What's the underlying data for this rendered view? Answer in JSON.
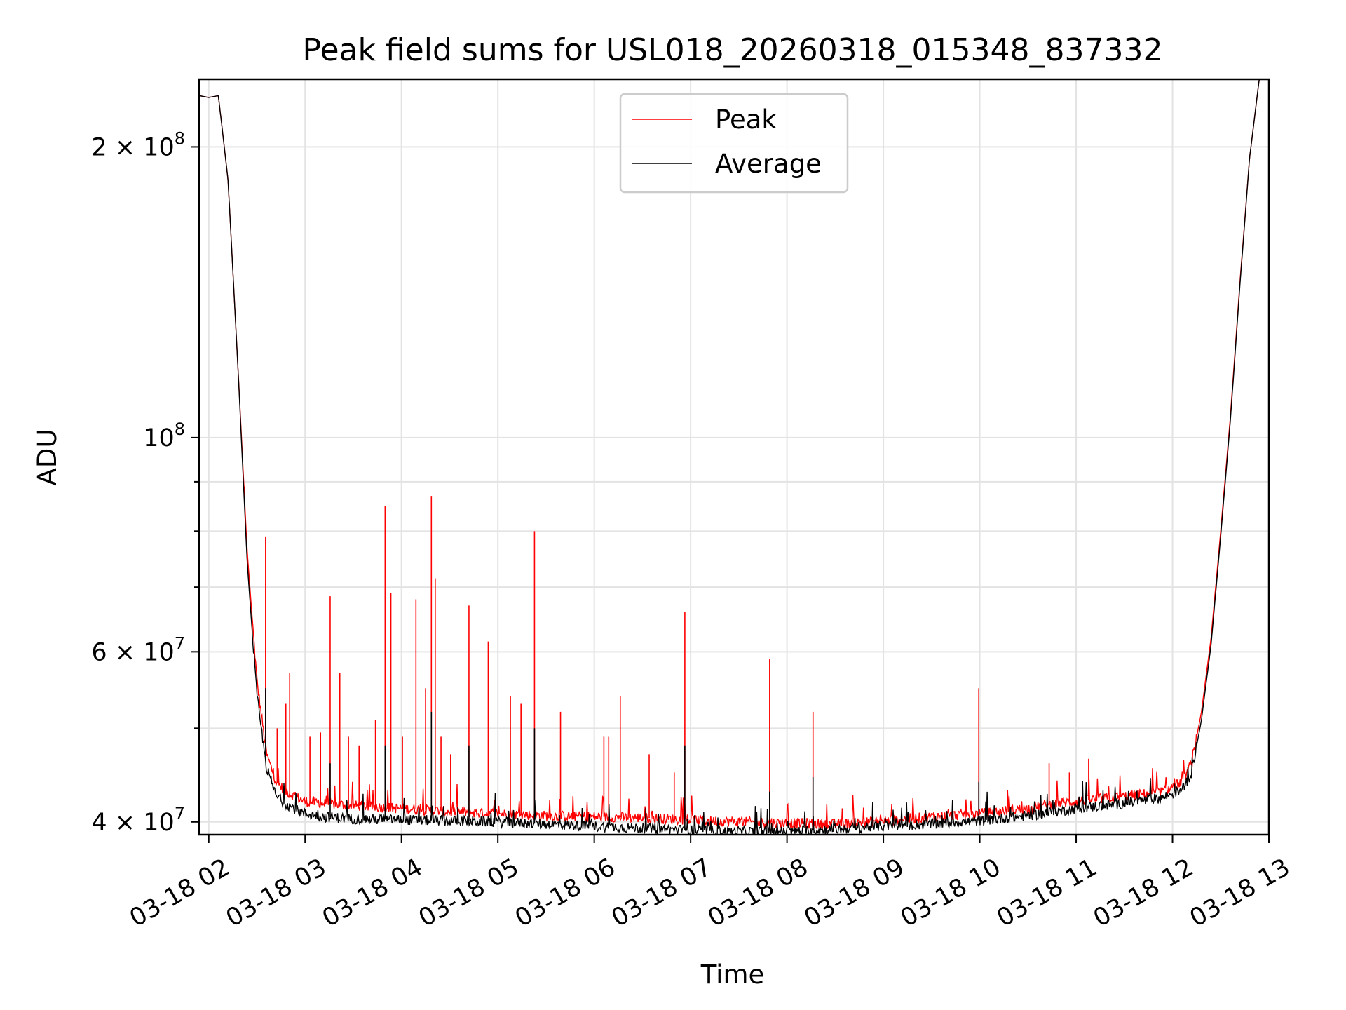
{
  "chart_data": {
    "type": "line",
    "title": "Peak field sums for USL018_20260318_015348_837332",
    "xlabel": "Time",
    "ylabel": "ADU",
    "yscale": "log",
    "ylim": [
      38800000,
      235000000
    ],
    "xlim_hours": [
      1.9,
      13.0
    ],
    "grid": true,
    "legend_position": "upper center",
    "x_ticks": [
      {
        "label": "03-18 02",
        "hour": 2
      },
      {
        "label": "03-18 03",
        "hour": 3
      },
      {
        "label": "03-18 04",
        "hour": 4
      },
      {
        "label": "03-18 05",
        "hour": 5
      },
      {
        "label": "03-18 06",
        "hour": 6
      },
      {
        "label": "03-18 07",
        "hour": 7
      },
      {
        "label": "03-18 08",
        "hour": 8
      },
      {
        "label": "03-18 09",
        "hour": 9
      },
      {
        "label": "03-18 10",
        "hour": 10
      },
      {
        "label": "03-18 11",
        "hour": 11
      },
      {
        "label": "03-18 12",
        "hour": 12
      },
      {
        "label": "03-18 13",
        "hour": 13
      }
    ],
    "y_ticks": [
      {
        "value": 40000000,
        "mantissa": "4 × 10",
        "exponent": "7"
      },
      {
        "value": 60000000,
        "mantissa": "6 × 10",
        "exponent": "7"
      },
      {
        "value": 100000000,
        "mantissa": "10",
        "exponent": "8"
      },
      {
        "value": 200000000,
        "mantissa": "2 × 10",
        "exponent": "8"
      }
    ],
    "y_minor_ticks": [
      50000000,
      70000000,
      80000000,
      90000000
    ],
    "series": [
      {
        "name": "Peak",
        "color": "#ff0000",
        "baseline": {
          "x": [
            1.9,
            2.0,
            2.1,
            2.2,
            2.3,
            2.4,
            2.5,
            2.6,
            2.7,
            2.8,
            2.9,
            3.0,
            3.2,
            3.5,
            4.0,
            4.5,
            5.0,
            5.5,
            6.0,
            6.5,
            7.0,
            7.5,
            8.0,
            8.5,
            9.0,
            9.5,
            10.0,
            10.5,
            10.8,
            11.0,
            11.5,
            11.9,
            12.1,
            12.2,
            12.3,
            12.4,
            12.5,
            12.6,
            12.7,
            12.8,
            12.9
          ],
          "y": [
            226000000,
            225000000,
            226000000,
            185000000,
            120000000,
            76000000,
            56000000,
            47000000,
            44000000,
            43000000,
            42500000,
            42000000,
            41800000,
            41600000,
            41300000,
            41000000,
            40800000,
            40600000,
            40500000,
            40400000,
            40200000,
            40000000,
            39900000,
            39800000,
            40100000,
            40500000,
            40800000,
            41300000,
            41800000,
            42000000,
            42500000,
            43000000,
            44000000,
            46000000,
            52000000,
            62000000,
            80000000,
            105000000,
            145000000,
            195000000,
            235000000
          ]
        },
        "spikes": [
          {
            "hour": 2.37,
            "value": 89000000
          },
          {
            "hour": 2.41,
            "value": 73000000
          },
          {
            "hour": 2.59,
            "value": 79000000
          },
          {
            "hour": 2.71,
            "value": 50000000
          },
          {
            "hour": 2.8,
            "value": 53000000
          },
          {
            "hour": 2.84,
            "value": 57000000
          },
          {
            "hour": 3.05,
            "value": 49000000
          },
          {
            "hour": 3.16,
            "value": 49500000
          },
          {
            "hour": 3.26,
            "value": 68500000
          },
          {
            "hour": 3.36,
            "value": 57000000
          },
          {
            "hour": 3.45,
            "value": 49000000
          },
          {
            "hour": 3.56,
            "value": 48000000
          },
          {
            "hour": 3.73,
            "value": 51000000
          },
          {
            "hour": 3.83,
            "value": 85000000
          },
          {
            "hour": 3.89,
            "value": 69000000
          },
          {
            "hour": 4.01,
            "value": 49000000
          },
          {
            "hour": 4.15,
            "value": 68000000
          },
          {
            "hour": 4.25,
            "value": 55000000
          },
          {
            "hour": 4.31,
            "value": 87000000
          },
          {
            "hour": 4.35,
            "value": 71500000
          },
          {
            "hour": 4.41,
            "value": 49000000
          },
          {
            "hour": 4.51,
            "value": 47000000
          },
          {
            "hour": 4.7,
            "value": 67000000
          },
          {
            "hour": 4.9,
            "value": 61500000
          },
          {
            "hour": 5.13,
            "value": 54000000
          },
          {
            "hour": 5.24,
            "value": 53000000
          },
          {
            "hour": 5.38,
            "value": 80000000
          },
          {
            "hour": 5.65,
            "value": 52000000
          },
          {
            "hour": 6.1,
            "value": 49000000
          },
          {
            "hour": 6.15,
            "value": 49000000
          },
          {
            "hour": 6.27,
            "value": 54000000
          },
          {
            "hour": 6.57,
            "value": 47000000
          },
          {
            "hour": 6.83,
            "value": 45000000
          },
          {
            "hour": 6.94,
            "value": 66000000
          },
          {
            "hour": 7.82,
            "value": 59000000
          },
          {
            "hour": 8.27,
            "value": 52000000
          },
          {
            "hour": 9.99,
            "value": 55000000
          },
          {
            "hour": 10.72,
            "value": 46000000
          },
          {
            "hour": 10.93,
            "value": 45000000
          },
          {
            "hour": 11.13,
            "value": 46500000
          }
        ]
      },
      {
        "name": "Average",
        "color": "#000000",
        "baseline": {
          "x": [
            1.9,
            2.0,
            2.1,
            2.2,
            2.3,
            2.4,
            2.5,
            2.6,
            2.7,
            2.8,
            2.9,
            3.0,
            3.2,
            3.5,
            4.0,
            4.5,
            5.0,
            5.5,
            6.0,
            6.5,
            7.0,
            7.5,
            8.0,
            8.5,
            9.0,
            9.5,
            10.0,
            10.5,
            10.8,
            11.0,
            11.5,
            11.9,
            12.1,
            12.2,
            12.3,
            12.4,
            12.5,
            12.6,
            12.7,
            12.8,
            12.9
          ],
          "y": [
            226000000,
            225000000,
            226000000,
            185000000,
            120000000,
            74000000,
            54000000,
            45500000,
            42500000,
            41800000,
            41200000,
            40800000,
            40500000,
            40300000,
            40200000,
            40100000,
            40000000,
            39800000,
            39600000,
            39400000,
            39200000,
            39100000,
            39100000,
            39300000,
            39600000,
            39800000,
            40100000,
            40600000,
            41000000,
            41300000,
            41800000,
            42400000,
            43200000,
            45000000,
            51000000,
            61000000,
            79000000,
            104000000,
            144000000,
            195000000,
            235000000
          ]
        },
        "spikes": [
          {
            "hour": 2.59,
            "value": 55000000
          },
          {
            "hour": 3.26,
            "value": 46000000
          },
          {
            "hour": 3.83,
            "value": 48000000
          },
          {
            "hour": 4.31,
            "value": 52000000
          },
          {
            "hour": 4.7,
            "value": 48000000
          },
          {
            "hour": 5.38,
            "value": 50000000
          },
          {
            "hour": 6.94,
            "value": 48000000
          },
          {
            "hour": 7.82,
            "value": 43000000
          },
          {
            "hour": 8.27,
            "value": 44500000
          },
          {
            "hour": 9.99,
            "value": 44000000
          }
        ]
      }
    ]
  }
}
